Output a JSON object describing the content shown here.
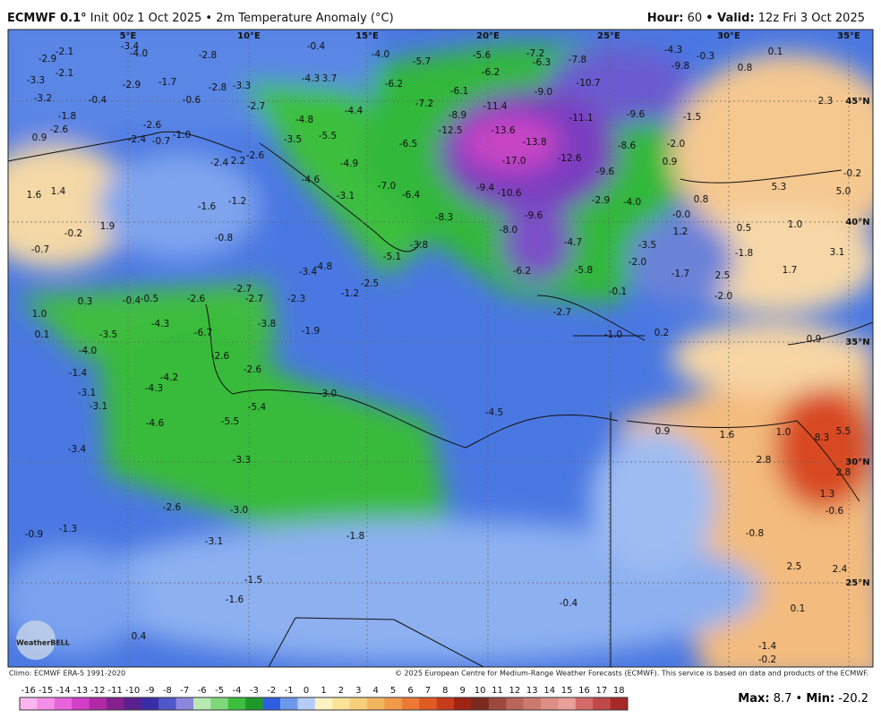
{
  "header": {
    "model": "ECMWF 0.1°",
    "init": "Init 00z 1 Oct 2025 • 2m Temperature Anomaly (°C)",
    "hour_label": "Hour:",
    "hour": "60",
    "valid_label": "• Valid:",
    "valid": "12z Fri 3 Oct 2025"
  },
  "map": {
    "grid_labels": [
      "5°E",
      "10°E",
      "15°E",
      "20°E",
      "25°E",
      "30°E",
      "35°E",
      "45°N",
      "40°N",
      "35°N",
      "30°N",
      "25°N"
    ],
    "logo": "WeatherBELL",
    "anomaly_labels": [
      "-2.9",
      "-2.1",
      "-3.4",
      "-4.0",
      "-2.8",
      "-0.4",
      "-4.0",
      "-5.7",
      "-5.6",
      "-7.2",
      "-4.3",
      "-0.3",
      "0.1",
      "-3.3",
      "-2.1",
      "-2.9",
      "-1.7",
      "-2.8",
      "-3.3",
      "-4.3",
      "3.7",
      "-6.2",
      "-6.2",
      "-6.3",
      "-7.8",
      "-9.8",
      "0.8",
      "-6.1",
      "-10.7",
      "-9.0",
      "-3.2",
      "-0.4",
      "-0.6",
      "-2.7",
      "-7.2",
      "-11.4",
      "2.3",
      "-1.8",
      "-2.6",
      "-8.9",
      "-11.1",
      "-9.6",
      "-1.5",
      "-4.4",
      "-4.8",
      "-2.6",
      "-2.4",
      "-0.7",
      "-1.0",
      "-3.5",
      "-5.5",
      "-12.5",
      "-13.6",
      "-13.8",
      "-8.6",
      "-2.0",
      "0.9",
      "-6.5",
      "-17.0",
      "-12.6",
      "0.9",
      "-2.4",
      "2.2",
      "-2.6",
      "-4.9",
      "-9.6",
      "-0.2",
      "-4.6",
      "-7.0",
      "-6.4",
      "-9.4",
      "-10.6",
      "5.3",
      "5.0",
      "1.6",
      "1.4",
      "-3.1",
      "-2.9",
      "-4.0",
      "0.8",
      "-1.6",
      "-1.2",
      "-8.3",
      "-9.6",
      "-0.0",
      "-0.2",
      "1.9",
      "-0.8",
      "-8.0",
      "-4.7",
      "1.2",
      "0.5",
      "1.0",
      "-3.8",
      "-3.5",
      "-1.8",
      "3.1",
      "-0.7",
      "-5.1",
      "-6.2",
      "-5.8",
      "-2.0",
      "-3.4",
      "-4.8",
      "-1.7",
      "2.5",
      "1.7",
      "-2.5",
      "-1.2",
      "-2.7",
      "-2.6",
      "-2.7",
      "-2.3",
      "0.3",
      "-0.4",
      "-0.5",
      "-0.1",
      "-2.0",
      "1.0",
      "-4.3",
      "-6.7",
      "-3.8",
      "-1.9",
      "-2.7",
      "0.1",
      "-3.5",
      "-1.0",
      "0.2",
      "0.9",
      "-4.0",
      "-2.6",
      "-1.4",
      "-2.6",
      "-4.2",
      "-4.3",
      "-3.1",
      "-3.0",
      "-3.1",
      "-5.4",
      "-4.5",
      "-4.6",
      "-5.5",
      "0.9",
      "1.6",
      "1.0",
      "8.3",
      "5.5",
      "-3.4",
      "-3.3",
      "2.8",
      "2.8",
      "1.3",
      "-0.6",
      "-2.6",
      "-3.0",
      "-0.9",
      "-1.3",
      "-1.8",
      "-0.8",
      "-3.1",
      "2.5",
      "2.4",
      "-1.5",
      "-1.6",
      "-0.4",
      "0.1",
      "0.4",
      "-1.4",
      "-0.2"
    ]
  },
  "legend": {
    "ticks": [
      -16,
      -15,
      -14,
      -13,
      -12,
      -11,
      -10,
      -9,
      -8,
      -7,
      -6,
      -5,
      -4,
      -3,
      -2,
      -1,
      0,
      1,
      2,
      3,
      4,
      5,
      6,
      7,
      8,
      9,
      10,
      11,
      12,
      13,
      14,
      15,
      16,
      17,
      18
    ],
    "colors": [
      "#fbb6f2",
      "#f48ee9",
      "#e864dc",
      "#d23ec8",
      "#b02aa8",
      "#86208f",
      "#5b1f8e",
      "#3a2ea8",
      "#4f58c8",
      "#8c86dc",
      "#b9e8b2",
      "#7fd97a",
      "#3cbf3c",
      "#1f9a2a",
      "#2f5fe0",
      "#6f98ec",
      "#b5cdf6",
      "#fbf3c4",
      "#f9e49a",
      "#f7cf7a",
      "#f4b560",
      "#f19a48",
      "#ec7a34",
      "#e05a24",
      "#c83c1c",
      "#9e2414",
      "#7a2a20",
      "#9c4a3e",
      "#b8665a",
      "#cc7a70",
      "#de8e86",
      "#e8a09a",
      "#d46a6a",
      "#c04848",
      "#a82828"
    ]
  },
  "footer": {
    "climo": "Climo: ECMWF ERA-5 1991-2020",
    "copyright": "© 2025 European Centre for Medium-Range Weather Forecasts (ECMWF). This service is based on data and products of the ECMWF.",
    "max_label": "Max:",
    "max": "8.7",
    "sep": "•",
    "min_label": "Min:",
    "min": "-20.2"
  }
}
